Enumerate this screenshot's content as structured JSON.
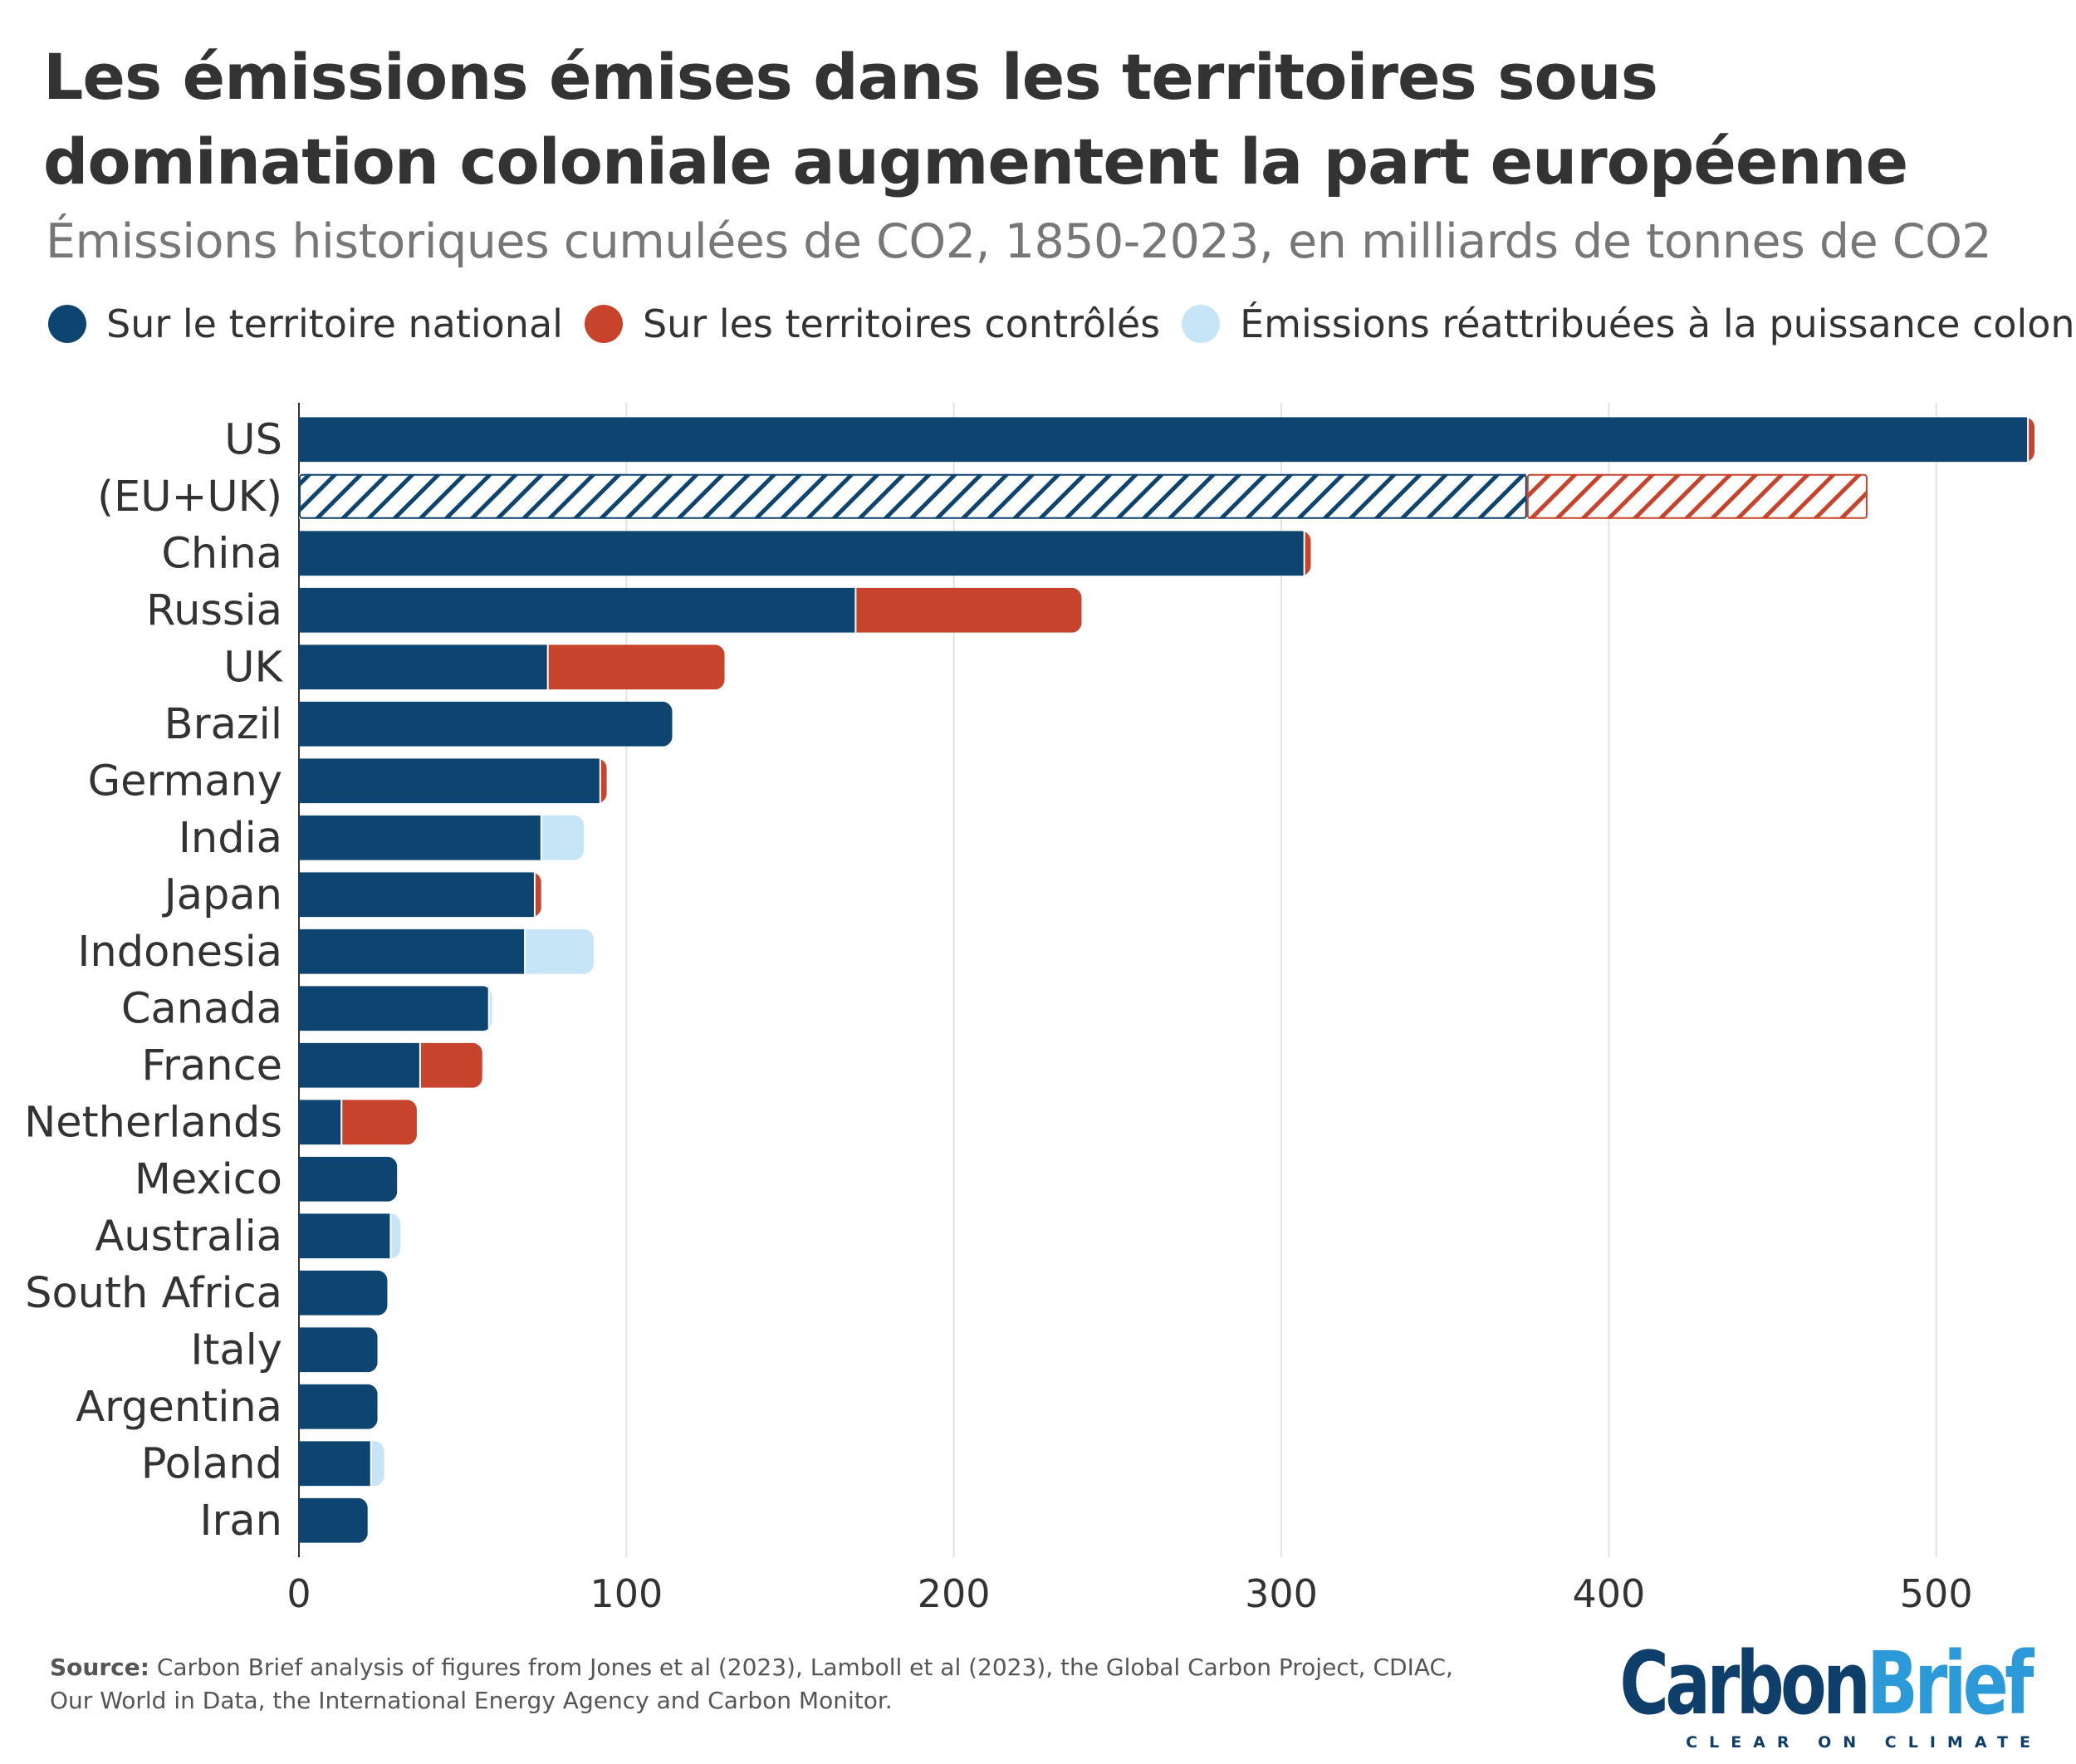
{
  "title": "Les émissions émises dans les territoires sous domination coloniale augmentent la part européenne",
  "subtitle": "Émissions historiques cumulées de CO2, 1850-2023, en milliards de tonnes de CO2",
  "legend": [
    {
      "label": "Sur le territoire national",
      "color": "#0d4470"
    },
    {
      "label": "Sur les territoires contrôlés",
      "color": "#c8432b"
    },
    {
      "label": "Émissions réattribuées à la puissance coloniale",
      "color": "#c6e6f8"
    }
  ],
  "chart_data": {
    "type": "bar",
    "orientation": "horizontal",
    "stacked": true,
    "categories": [
      "US",
      "(EU+UK)",
      "China",
      "Russia",
      "UK",
      "Brazil",
      "Germany",
      "India",
      "Japan",
      "Indonesia",
      "Canada",
      "France",
      "Netherlands",
      "Mexico",
      "Australia",
      "South Africa",
      "Italy",
      "Argentina",
      "Poland",
      "Iran"
    ],
    "series": [
      {
        "name": "Sur le territoire national",
        "color": "#0d4470",
        "values": [
          528,
          375,
          307,
          170,
          76,
          114,
          92,
          74,
          72,
          69,
          58,
          37,
          13,
          30,
          28,
          27,
          24,
          24,
          22,
          21
        ]
      },
      {
        "name": "Sur les territoires contrôlés",
        "color": "#c8432b",
        "values": [
          2,
          104,
          2,
          69,
          54,
          0,
          2,
          0,
          2,
          0,
          0,
          19,
          23,
          0,
          0,
          0,
          0,
          0,
          0,
          0
        ]
      },
      {
        "name": "Émissions réattribuées à la puissance coloniale",
        "color": "#c6e6f8",
        "values": [
          0,
          0,
          0,
          0,
          0,
          0,
          0,
          13,
          0,
          21,
          1,
          0,
          0,
          0,
          3,
          0,
          0,
          0,
          4,
          0
        ]
      }
    ],
    "hatched_categories": [
      "(EU+UK)"
    ],
    "xlim": [
      0,
      530
    ],
    "xticks": [
      0,
      100,
      200,
      300,
      400,
      500
    ],
    "grid": "vertical",
    "legend_position": "top-left"
  },
  "source": {
    "label": "Source:",
    "text": "Carbon Brief analysis of figures from Jones et al (2023), Lamboll et al (2023), the Global Carbon Project, CDIAC, Our World in Data, the International Energy Agency and Carbon Monitor."
  },
  "brand": {
    "name_part1": "Carbon",
    "name_part2": "Brief",
    "tagline": "CLEAR ON CLIMATE"
  }
}
